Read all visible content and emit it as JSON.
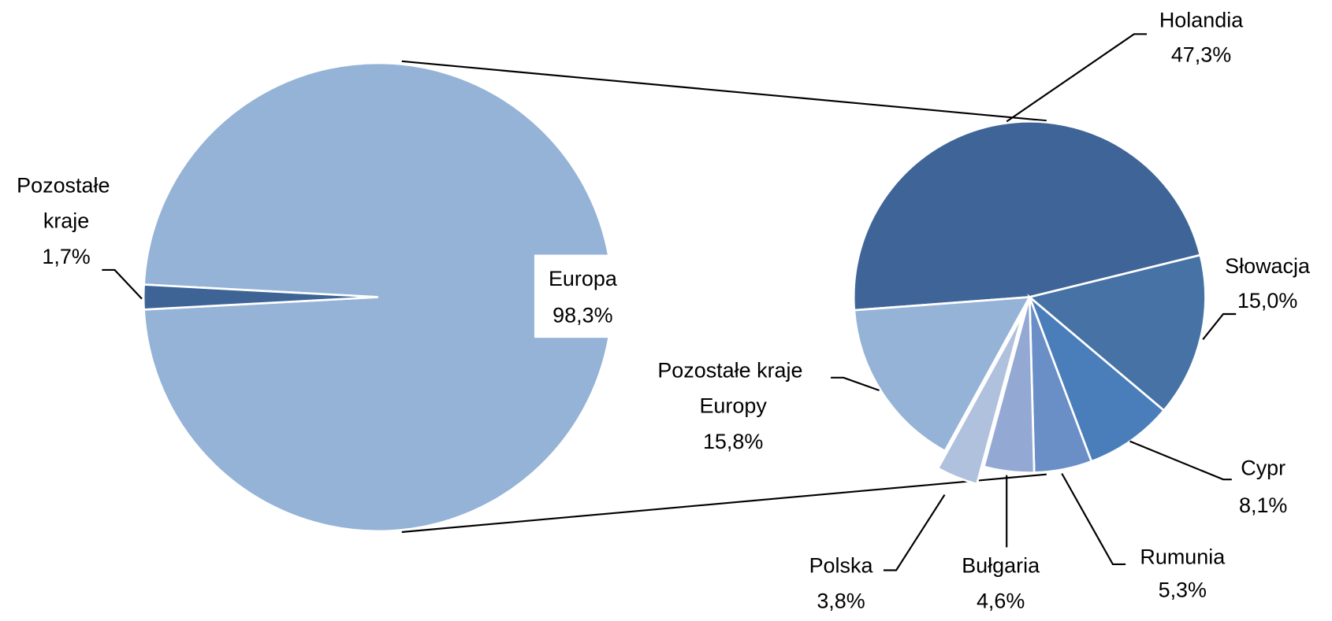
{
  "chart_data": [
    {
      "type": "pie",
      "categories": [
        "Europa",
        "Pozostałe kraje"
      ],
      "values": [
        98.3,
        1.7
      ],
      "value_labels": [
        "98,3%",
        "1,7%"
      ],
      "colors": [
        "#95b3d7",
        "#3d6495"
      ]
    },
    {
      "type": "pie",
      "categories": [
        "Holandia",
        "Słowacja",
        "Cypr",
        "Rumunia",
        "Bułgaria",
        "Polska",
        "Pozostałe kraje Europy"
      ],
      "values": [
        47.3,
        15.0,
        8.1,
        5.3,
        4.6,
        3.8,
        15.8
      ],
      "value_labels": [
        "47,3%",
        "15,0%",
        "8,1%",
        "5,3%",
        "4,6%",
        "3,8%",
        "15,8%"
      ],
      "colors": [
        "#3f6598",
        "#4672a6",
        "#4a7ebb",
        "#6a8fc6",
        "#93a9d3",
        "#afc1dc",
        "#95b3d7"
      ]
    }
  ]
}
